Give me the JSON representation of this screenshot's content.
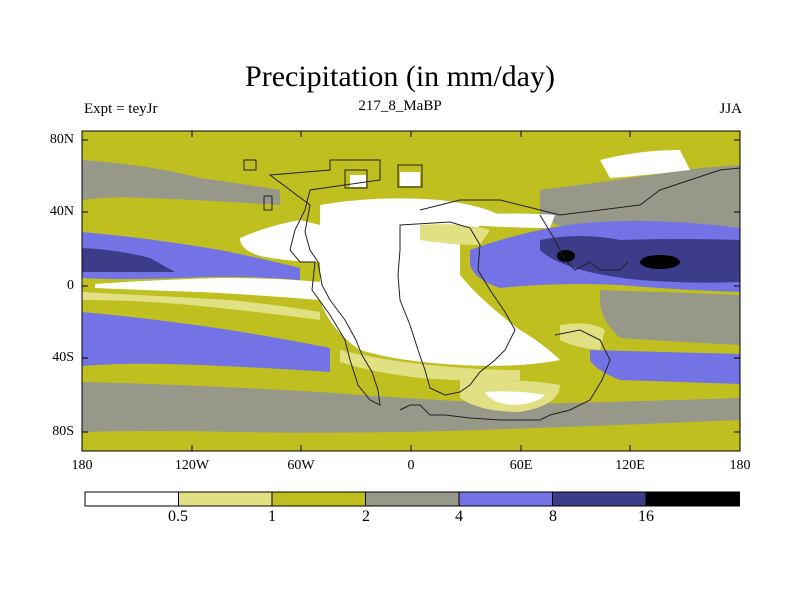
{
  "title": "Precipitation (in mm/day)",
  "subtitle_left": "Expt = teyJr",
  "subtitle_center": "217_8_MaBP",
  "subtitle_right": "JJA",
  "lat_labels": [
    "80N",
    "40N",
    "0",
    "40S",
    "80S"
  ],
  "lon_labels": [
    "180",
    "120W",
    "60W",
    "0",
    "60E",
    "120E",
    "180"
  ],
  "colorbar": {
    "labels": [
      "0.5",
      "1",
      "2",
      "4",
      "8",
      "16"
    ],
    "colors": [
      "#ffffff",
      "#e1e083",
      "#bfbf1f",
      "#97978a",
      "#7373e6",
      "#3c3c8a",
      "#000000"
    ]
  },
  "colors": {
    "white": "#ffffff",
    "light_yellow": "#e1e083",
    "olive": "#bfbf1f",
    "gray": "#97978a",
    "blue": "#7373e6",
    "dark_blue": "#3c3c8a",
    "black": "#000000"
  }
}
